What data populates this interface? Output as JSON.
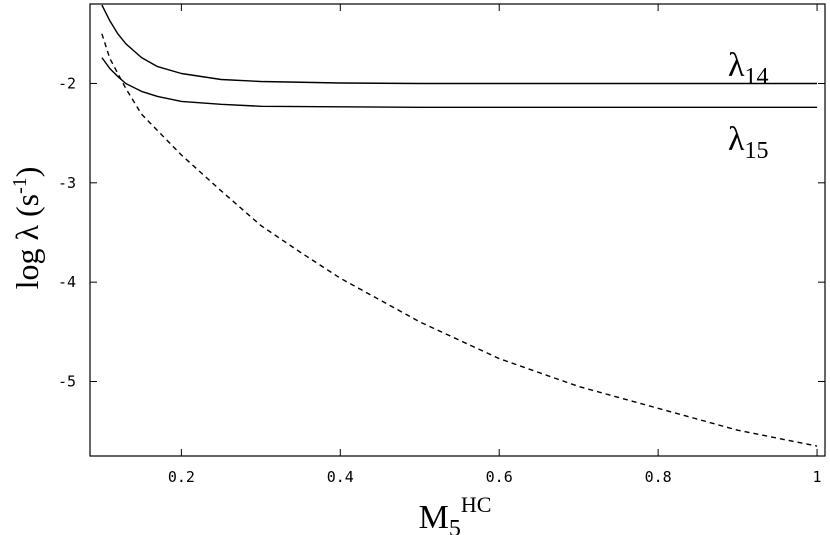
{
  "chart_data": {
    "type": "line",
    "title": "",
    "xlabel": {
      "base": "M",
      "sub": "5",
      "sup": "HC"
    },
    "ylabel": {
      "prefix": "log ",
      "lambda": "λ",
      "open": " (s",
      "sup": "-1",
      "close": ")"
    },
    "xlim": [
      0.085,
      1.01
    ],
    "ylim": [
      -5.75,
      -1.2
    ],
    "x_ticks": [
      {
        "value": 0.2,
        "label": "0.2"
      },
      {
        "value": 0.4,
        "label": "0.4"
      },
      {
        "value": 0.6,
        "label": "0.6"
      },
      {
        "value": 0.8,
        "label": "0.8"
      },
      {
        "value": 1.0,
        "label": "1"
      }
    ],
    "y_ticks": [
      {
        "value": -2,
        "label": "-2"
      },
      {
        "value": -3,
        "label": "-3"
      },
      {
        "value": -4,
        "label": "-4"
      },
      {
        "value": -5,
        "label": "-5"
      }
    ],
    "grid": false,
    "series": [
      {
        "name": "λ14",
        "label": {
          "symbol": "λ",
          "sub": "14"
        },
        "style": "solid",
        "color": "#000000",
        "x": [
          0.1,
          0.11,
          0.12,
          0.13,
          0.15,
          0.17,
          0.2,
          0.25,
          0.3,
          0.4,
          0.5,
          0.6,
          0.7,
          0.8,
          0.9,
          1.0
        ],
        "y": [
          -1.21,
          -1.37,
          -1.5,
          -1.6,
          -1.74,
          -1.83,
          -1.9,
          -1.96,
          -1.98,
          -1.995,
          -2.0,
          -2.0,
          -2.0,
          -2.0,
          -2.0,
          -2.0
        ]
      },
      {
        "name": "λ15",
        "label": {
          "symbol": "λ",
          "sub": "15"
        },
        "style": "solid",
        "color": "#000000",
        "x": [
          0.1,
          0.11,
          0.12,
          0.13,
          0.15,
          0.17,
          0.2,
          0.25,
          0.3,
          0.4,
          0.5,
          0.6,
          0.7,
          0.8,
          0.9,
          1.0
        ],
        "y": [
          -1.74,
          -1.85,
          -1.93,
          -2.0,
          -2.08,
          -2.13,
          -2.18,
          -2.21,
          -2.23,
          -2.235,
          -2.24,
          -2.24,
          -2.24,
          -2.24,
          -2.24,
          -2.24
        ]
      },
      {
        "name": "",
        "style": "dashed",
        "color": "#000000",
        "x": [
          0.1,
          0.11,
          0.13,
          0.15,
          0.2,
          0.25,
          0.3,
          0.35,
          0.4,
          0.5,
          0.6,
          0.7,
          0.8,
          0.9,
          1.0
        ],
        "y": [
          -1.5,
          -1.75,
          -2.05,
          -2.31,
          -2.72,
          -3.08,
          -3.43,
          -3.7,
          -3.96,
          -4.4,
          -4.77,
          -5.05,
          -5.27,
          -5.49,
          -5.65
        ]
      }
    ]
  }
}
